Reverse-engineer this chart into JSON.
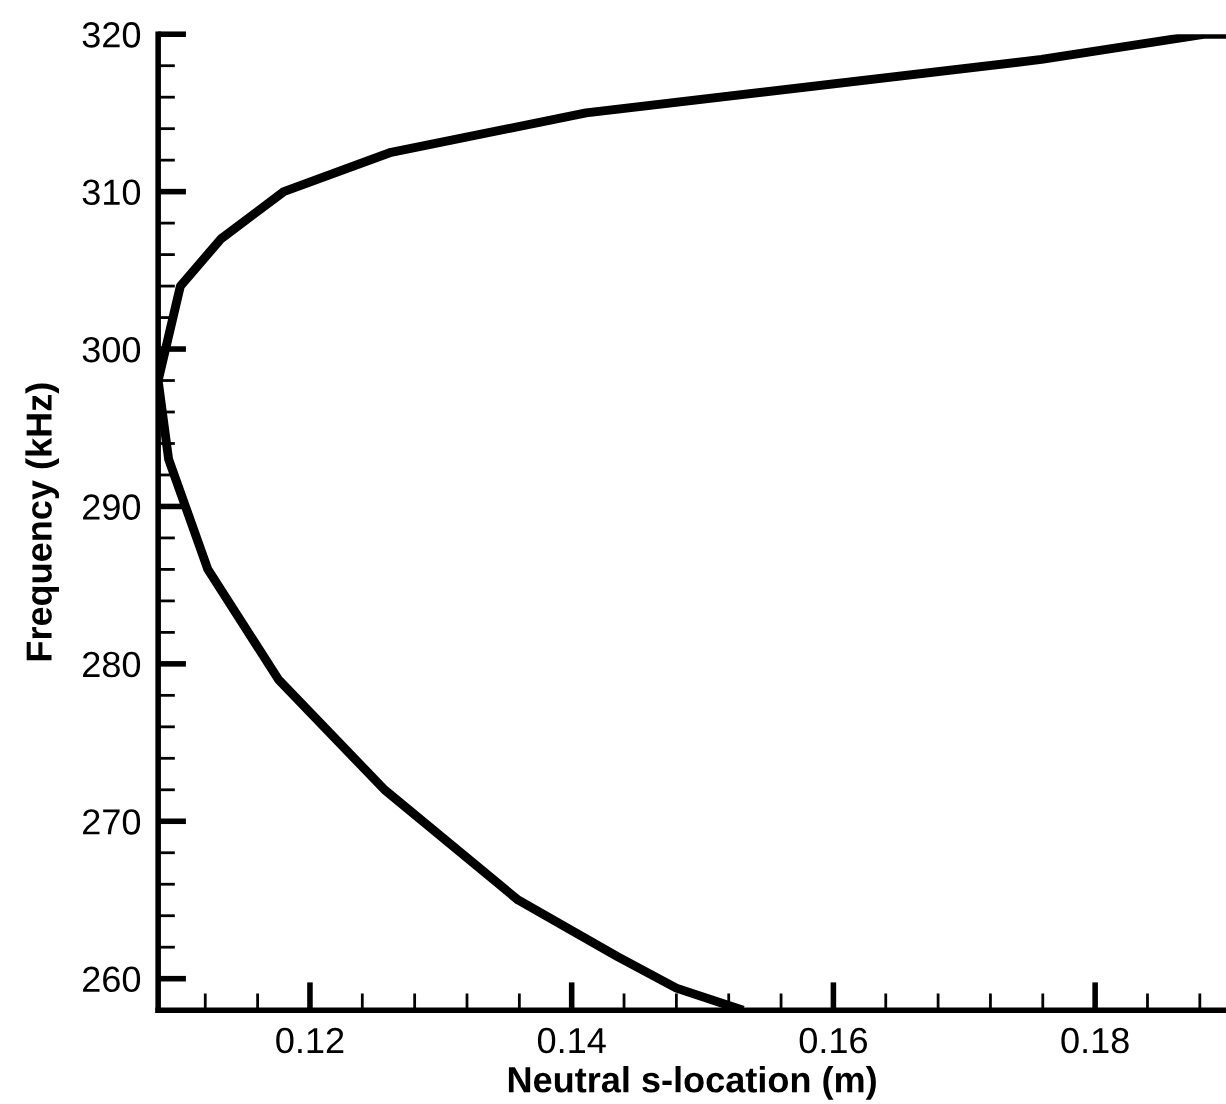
{
  "chart_data": {
    "type": "line",
    "xlabel": "Neutral s-location (m)",
    "ylabel": "Frequency (kHz)",
    "series": [
      {
        "color": "#000000",
        "x": [
          0.19,
          0.1884,
          0.1759,
          0.1411,
          0.1262,
          0.118,
          0.1132,
          0.1101,
          0.1084,
          0.1092,
          0.1122,
          0.1176,
          0.1257,
          0.1359,
          0.1435,
          0.148,
          0.1531
        ],
        "values": [
          320,
          320,
          318.4,
          315,
          312.5,
          310,
          307,
          304,
          298,
          293,
          286,
          279,
          272,
          265,
          261.4,
          259.4,
          258
        ]
      }
    ],
    "xlim": [
      0.1084,
      0.19
    ],
    "ylim": [
      258,
      320
    ],
    "xticks": [
      {
        "value": 0.112,
        "label": null
      },
      {
        "value": 0.116,
        "label": null
      },
      {
        "value": 0.12,
        "label": "0.12"
      },
      {
        "value": 0.124,
        "label": null
      },
      {
        "value": 0.128,
        "label": null
      },
      {
        "value": 0.132,
        "label": null
      },
      {
        "value": 0.136,
        "label": null
      },
      {
        "value": 0.14,
        "label": "0.14"
      },
      {
        "value": 0.144,
        "label": null
      },
      {
        "value": 0.148,
        "label": null
      },
      {
        "value": 0.152,
        "label": null
      },
      {
        "value": 0.156,
        "label": null
      },
      {
        "value": 0.16,
        "label": "0.16"
      },
      {
        "value": 0.164,
        "label": null
      },
      {
        "value": 0.168,
        "label": null
      },
      {
        "value": 0.172,
        "label": null
      },
      {
        "value": 0.176,
        "label": null
      },
      {
        "value": 0.18,
        "label": "0.18"
      },
      {
        "value": 0.184,
        "label": null
      },
      {
        "value": 0.188,
        "label": null
      }
    ],
    "yticks": [
      260,
      {
        "value": 262,
        "label": null
      },
      {
        "value": 264,
        "label": null
      },
      {
        "value": 266,
        "label": null
      },
      {
        "value": 268,
        "label": null
      },
      270,
      {
        "value": 272,
        "label": null
      },
      {
        "value": 274,
        "label": null
      },
      {
        "value": 276,
        "label": null
      },
      {
        "value": 278,
        "label": null
      },
      280,
      {
        "value": 282,
        "label": null
      },
      {
        "value": 284,
        "label": null
      },
      {
        "value": 286,
        "label": null
      },
      {
        "value": 288,
        "label": null
      },
      290,
      {
        "value": 292,
        "label": null
      },
      {
        "value": 294,
        "label": null
      },
      {
        "value": 296,
        "label": null
      },
      {
        "value": 298,
        "label": null
      },
      300,
      {
        "value": 302,
        "label": null
      },
      {
        "value": 304,
        "label": null
      },
      {
        "value": 306,
        "label": null
      },
      {
        "value": 308,
        "label": null
      },
      310,
      {
        "value": 312,
        "label": null
      },
      {
        "value": 314,
        "label": null
      },
      {
        "value": 316,
        "label": null
      },
      {
        "value": 318,
        "label": null
      },
      320
    ],
    "grid": false,
    "legend": false,
    "marker": "none",
    "line_style": "solid"
  }
}
